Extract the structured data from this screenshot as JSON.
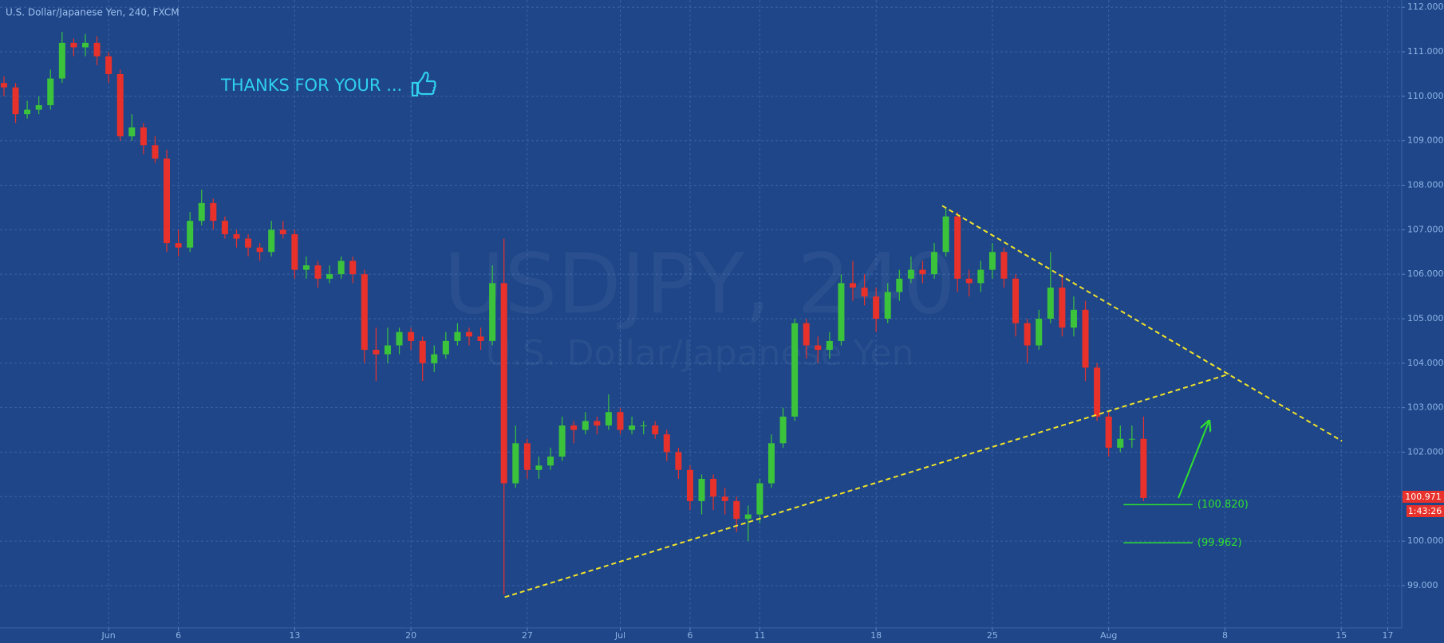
{
  "chart_data": {
    "type": "candlestick",
    "title": "U.S. Dollar/Japanese Yen, 240, FXCM",
    "watermark": {
      "symbol": "USDJPY, 240",
      "description": "U.S. Dollar/Japanese Yen"
    },
    "annotation": "THANKS FOR YOUR ...",
    "up_color": "#3cc33c",
    "down_color": "#e8312b",
    "grid": true,
    "xlim": [
      -4.67,
      55.6
    ],
    "ylim": [
      98.05,
      112.165
    ],
    "xticks": [
      {
        "value": 0,
        "label": "Jun"
      },
      {
        "value": 3,
        "label": "6"
      },
      {
        "value": 8,
        "label": "13"
      },
      {
        "value": 13,
        "label": "20"
      },
      {
        "value": 18,
        "label": "27"
      },
      {
        "value": 22,
        "label": "Jul"
      },
      {
        "value": 25,
        "label": "6"
      },
      {
        "value": 28,
        "label": "11"
      },
      {
        "value": 33,
        "label": "18"
      },
      {
        "value": 38,
        "label": "25"
      },
      {
        "value": 43,
        "label": "Aug"
      },
      {
        "value": 48,
        "label": "8"
      },
      {
        "value": 53,
        "label": "15"
      },
      {
        "value": 55,
        "label": "17"
      }
    ],
    "yticks": [
      {
        "value": 99,
        "label": "99.000"
      },
      {
        "value": 100,
        "label": "100.000"
      },
      {
        "value": 101,
        "label": "101.000"
      },
      {
        "value": 102,
        "label": "102.000"
      },
      {
        "value": 103,
        "label": "103.000"
      },
      {
        "value": 104,
        "label": "104.000"
      },
      {
        "value": 105,
        "label": "105.000"
      },
      {
        "value": 106,
        "label": "106.000"
      },
      {
        "value": 107,
        "label": "107.000"
      },
      {
        "value": 108,
        "label": "108.000"
      },
      {
        "value": 109,
        "label": "109.000"
      },
      {
        "value": 110,
        "label": "110.000"
      },
      {
        "value": 111,
        "label": "111.000"
      },
      {
        "value": 112,
        "label": "112.000"
      }
    ],
    "x": [
      -4.5,
      -4,
      -3.5,
      -3,
      -2.5,
      -2,
      -1.5,
      -1,
      -0.5,
      0,
      0.5,
      1,
      1.5,
      2,
      2.5,
      3,
      3.5,
      4,
      4.5,
      5,
      5.5,
      6,
      6.5,
      7,
      7.5,
      8,
      8.5,
      9,
      9.5,
      10,
      10.5,
      11,
      11.5,
      12,
      12.5,
      13,
      13.5,
      14,
      14.5,
      15,
      15.5,
      16,
      16.5,
      17,
      17.5,
      18,
      18.5,
      19,
      19.5,
      20,
      20.5,
      21,
      21.5,
      22,
      22.5,
      23,
      23.5,
      24,
      24.5,
      25,
      25.5,
      26,
      26.5,
      27,
      27.5,
      28,
      28.5,
      29,
      29.5,
      30,
      30.5,
      31,
      31.5,
      32,
      32.5,
      33,
      33.5,
      34,
      34.5,
      35,
      35.5,
      36,
      36.5,
      37,
      37.5,
      38,
      38.5,
      39,
      39.5,
      40,
      40.5,
      41,
      41.5,
      42,
      42.5,
      43,
      43.5,
      44,
      44.5
    ],
    "open": [
      110.3,
      110.2,
      109.6,
      109.7,
      109.8,
      110.4,
      111.2,
      111.1,
      111.2,
      110.9,
      110.5,
      109.1,
      109.3,
      108.9,
      108.6,
      106.7,
      106.6,
      107.2,
      107.6,
      107.2,
      106.9,
      106.8,
      106.6,
      106.5,
      107.0,
      106.9,
      106.1,
      106.2,
      105.9,
      106.0,
      106.3,
      106.0,
      104.3,
      104.2,
      104.4,
      104.7,
      104.5,
      104.0,
      104.2,
      104.5,
      104.7,
      104.6,
      104.5,
      105.8,
      101.3,
      102.2,
      101.6,
      101.7,
      101.9,
      102.6,
      102.5,
      102.7,
      102.6,
      102.9,
      102.5,
      102.6,
      102.6,
      102.4,
      102.0,
      101.6,
      100.9,
      101.4,
      101.0,
      100.9,
      100.5,
      100.6,
      101.3,
      102.2,
      102.8,
      104.9,
      104.4,
      104.3,
      104.5,
      105.8,
      105.7,
      105.5,
      105.0,
      105.6,
      105.9,
      106.1,
      106.0,
      106.5,
      107.3,
      105.9,
      105.8,
      106.1,
      106.5,
      105.9,
      104.9,
      104.4,
      105.0,
      105.7,
      104.8,
      105.2,
      103.9,
      102.8,
      102.1,
      102.3,
      102.3
    ],
    "high": [
      110.45,
      110.3,
      109.9,
      110.0,
      110.6,
      111.45,
      111.3,
      111.4,
      111.35,
      111.0,
      110.6,
      109.6,
      109.4,
      109.1,
      108.8,
      107.0,
      107.4,
      107.9,
      107.7,
      107.3,
      107.0,
      106.9,
      106.7,
      107.2,
      107.2,
      107.0,
      106.4,
      106.3,
      106.2,
      106.4,
      106.4,
      106.1,
      104.8,
      104.8,
      104.8,
      104.8,
      104.6,
      104.4,
      104.7,
      104.9,
      104.8,
      104.8,
      106.2,
      106.8,
      102.6,
      102.3,
      101.9,
      102.1,
      102.8,
      102.7,
      102.9,
      102.8,
      103.3,
      103.0,
      102.8,
      102.7,
      102.7,
      102.5,
      102.1,
      101.7,
      101.5,
      101.5,
      101.2,
      101.0,
      100.8,
      101.4,
      102.4,
      103.0,
      105.0,
      105.0,
      104.6,
      104.7,
      106.0,
      106.3,
      106.0,
      105.7,
      105.8,
      106.1,
      106.4,
      106.3,
      106.7,
      107.5,
      107.4,
      106.1,
      106.3,
      106.7,
      106.6,
      106.0,
      105.0,
      105.2,
      106.5,
      106.0,
      105.5,
      105.4,
      104.0,
      102.9,
      102.6,
      102.6,
      102.8
    ],
    "low": [
      110.0,
      109.4,
      109.5,
      109.6,
      109.7,
      110.3,
      110.9,
      110.9,
      110.7,
      110.3,
      109.0,
      109.0,
      108.7,
      108.5,
      106.5,
      106.4,
      106.5,
      107.1,
      107.0,
      106.8,
      106.6,
      106.4,
      106.3,
      106.4,
      106.8,
      105.9,
      105.9,
      105.7,
      105.8,
      105.9,
      105.8,
      104.0,
      103.6,
      104.0,
      104.2,
      104.3,
      103.6,
      103.8,
      104.1,
      104.4,
      104.4,
      104.3,
      104.4,
      98.8,
      101.2,
      101.4,
      101.4,
      101.6,
      101.8,
      102.2,
      102.4,
      102.4,
      102.5,
      102.4,
      102.4,
      102.4,
      102.3,
      101.8,
      101.4,
      100.7,
      100.6,
      100.7,
      100.6,
      100.2,
      100.0,
      100.4,
      101.2,
      102.1,
      102.7,
      104.1,
      104.0,
      104.1,
      104.4,
      105.4,
      105.3,
      104.7,
      104.9,
      105.4,
      105.8,
      105.8,
      105.9,
      106.4,
      105.6,
      105.5,
      105.6,
      105.9,
      105.7,
      104.6,
      104.0,
      104.3,
      104.9,
      104.6,
      104.6,
      103.6,
      102.7,
      101.9,
      102.0,
      102.1,
      100.9
    ],
    "close": [
      110.2,
      109.6,
      109.7,
      109.8,
      110.4,
      111.2,
      111.1,
      111.2,
      110.9,
      110.5,
      109.1,
      109.3,
      108.9,
      108.6,
      106.7,
      106.6,
      107.2,
      107.6,
      107.2,
      106.9,
      106.8,
      106.6,
      106.5,
      107.0,
      106.9,
      106.1,
      106.2,
      105.9,
      106.0,
      106.3,
      106.0,
      104.3,
      104.2,
      104.4,
      104.7,
      104.5,
      104.0,
      104.2,
      104.5,
      104.7,
      104.6,
      104.5,
      105.8,
      101.3,
      102.2,
      101.6,
      101.7,
      101.9,
      102.6,
      102.5,
      102.7,
      102.6,
      102.9,
      102.5,
      102.6,
      102.6,
      102.4,
      102.0,
      101.6,
      100.9,
      101.4,
      101.0,
      100.9,
      100.5,
      100.6,
      101.3,
      102.2,
      102.8,
      104.9,
      104.4,
      104.3,
      104.5,
      105.8,
      105.7,
      105.5,
      105.0,
      105.6,
      105.9,
      106.1,
      106.0,
      106.5,
      107.3,
      105.9,
      105.8,
      106.1,
      106.5,
      105.9,
      104.9,
      104.4,
      105.0,
      105.7,
      104.8,
      105.2,
      103.9,
      102.8,
      102.1,
      102.3,
      102.3,
      100.971
    ],
    "trendlines": [
      {
        "x": [
          17.03,
          48.2
        ],
        "y": [
          98.74,
          103.76
        ],
        "color": "#f2e32a"
      },
      {
        "x": [
          35.84,
          53.03
        ],
        "y": [
          107.54,
          102.25
        ],
        "color": "#f2e32a"
      }
    ],
    "levels": [
      {
        "value": 100.82,
        "label": "(100.820)",
        "x": [
          43.64,
          46.61
        ],
        "color": "#2fe02f"
      },
      {
        "value": 99.962,
        "label": "(99.962)",
        "x": [
          43.64,
          46.61
        ],
        "color": "#2fe02f"
      }
    ],
    "arrow": {
      "x": [
        46.0,
        47.3
      ],
      "y": [
        100.97,
        102.68
      ],
      "color": "#2fe02f"
    },
    "last_price": 100.971,
    "countdown": "1:43:26"
  }
}
